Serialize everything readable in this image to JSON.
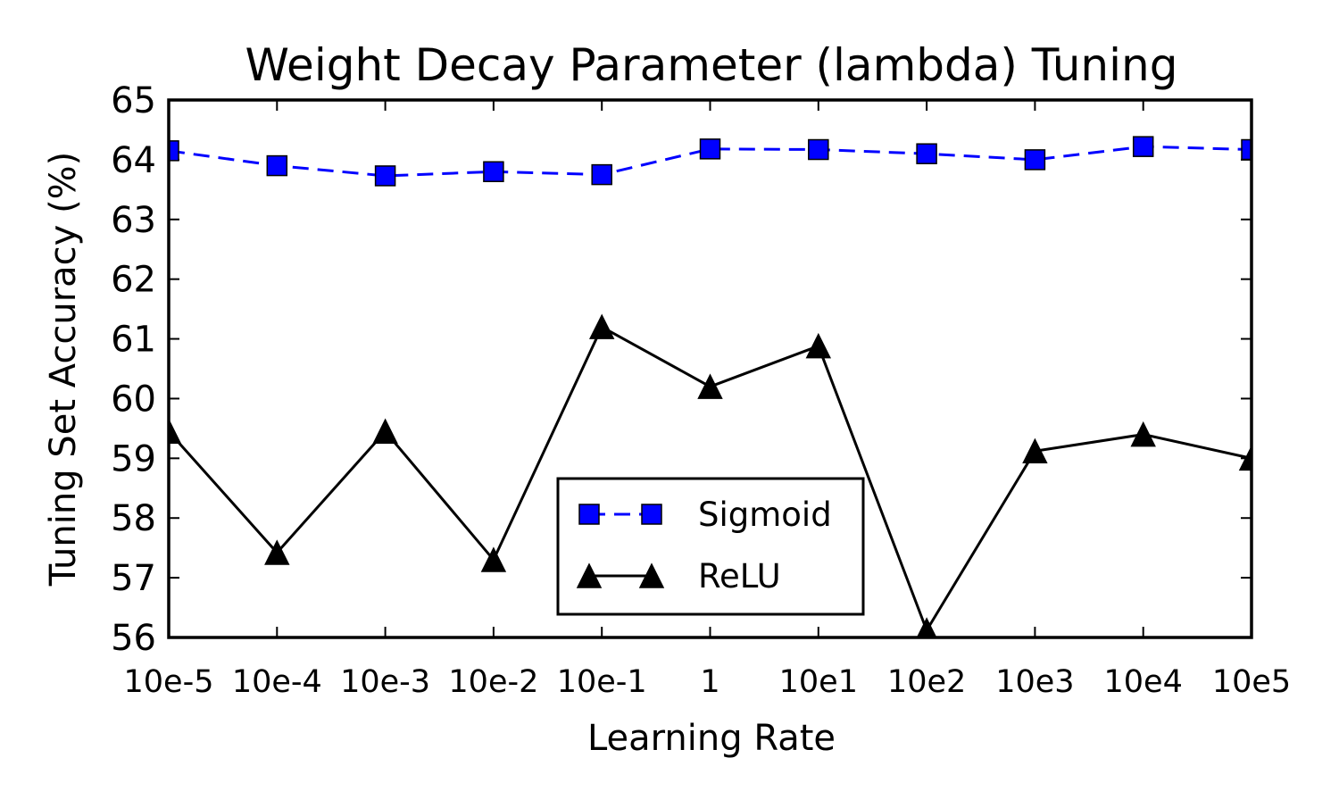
{
  "chart_data": {
    "type": "line",
    "title": "Weight Decay Parameter (lambda) Tuning",
    "xlabel": "Learning Rate",
    "ylabel": "Tuning Set Accuracy (%)",
    "categories": [
      "10e-5",
      "10e-4",
      "10e-3",
      "10e-2",
      "10e-1",
      "1",
      "10e1",
      "10e2",
      "10e3",
      "10e4",
      "10e5"
    ],
    "ylim": [
      56,
      65
    ],
    "yticks": [
      56,
      57,
      58,
      59,
      60,
      61,
      62,
      63,
      64,
      65
    ],
    "grid": false,
    "legend_position": "lower-center",
    "series": [
      {
        "name": "Sigmoid",
        "values": [
          64.15,
          63.9,
          63.73,
          63.8,
          63.75,
          64.18,
          64.17,
          64.1,
          64.0,
          64.22,
          64.17
        ],
        "color": "#0000ff",
        "line_style": "dashed",
        "marker": "square"
      },
      {
        "name": "ReLU",
        "values": [
          59.45,
          57.42,
          59.45,
          57.3,
          61.2,
          60.2,
          60.88,
          56.12,
          59.12,
          59.4,
          59.0
        ],
        "color": "#000000",
        "line_style": "solid",
        "marker": "triangle"
      }
    ]
  }
}
